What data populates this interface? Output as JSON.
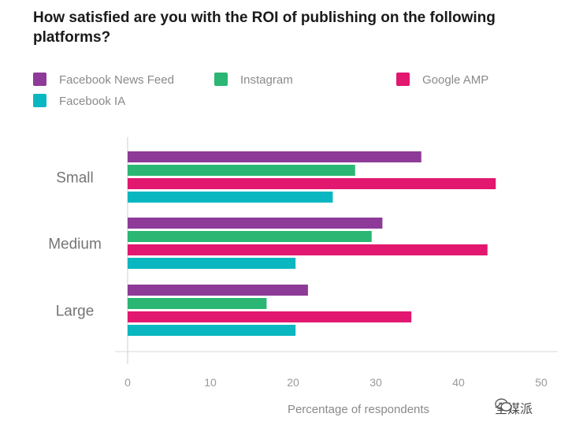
{
  "chart_data": {
    "type": "bar",
    "orientation": "horizontal",
    "title": "How satisfied are you with the ROI of publishing on the following platforms?",
    "xlabel": "Percentage of respondents",
    "ylabel": "",
    "xlim": [
      0,
      50
    ],
    "xticks": [
      "0",
      "10",
      "20",
      "30",
      "40",
      "50"
    ],
    "legend_position": "top",
    "categories": [
      "Small",
      "Medium",
      "Large"
    ],
    "series": [
      {
        "name": "Facebook News Feed",
        "color": "#8e3a98",
        "values": [
          35.5,
          30.8,
          21.8
        ]
      },
      {
        "name": "Instagram",
        "color": "#2bb673",
        "values": [
          27.5,
          29.5,
          16.8
        ]
      },
      {
        "name": "Google AMP",
        "color": "#e2176f",
        "values": [
          44.5,
          43.5,
          34.3
        ]
      },
      {
        "name": "Facebook IA",
        "color": "#0ab7c0",
        "values": [
          24.8,
          20.3,
          20.3
        ]
      }
    ]
  },
  "watermark": {
    "text": "全媒派",
    "icon": "wechat-icon"
  }
}
